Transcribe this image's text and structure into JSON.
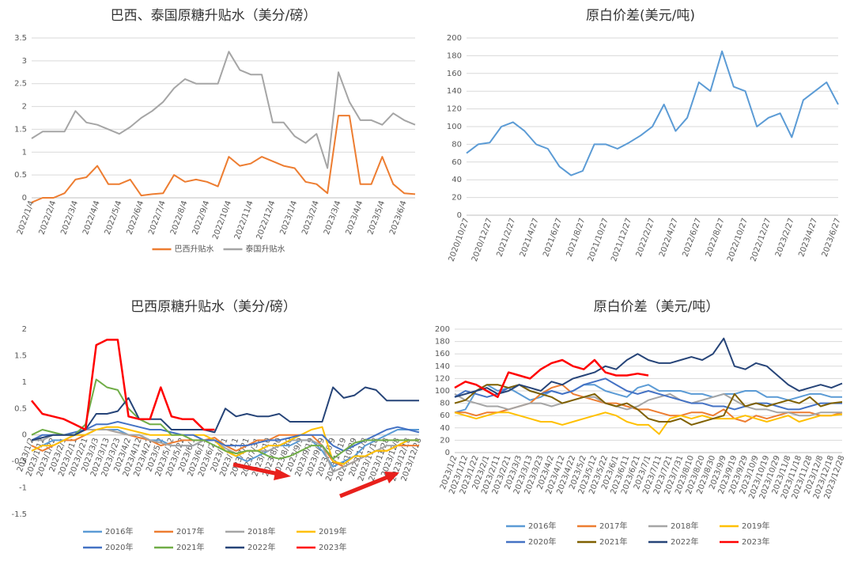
{
  "chart_data": [
    {
      "type": "line",
      "title": "巴西、泰国原糖升贴水（美分/磅）",
      "categories": [
        "2022/1/4",
        null,
        "2022/2/4",
        null,
        "2022/3/4",
        null,
        "2022/4/4",
        null,
        "2022/5/4",
        null,
        "2022/6/4",
        null,
        "2022/7/4",
        null,
        "2022/8/4",
        null,
        "2022/9/4",
        null,
        "2022/10/4",
        null,
        "2022/11/4",
        null,
        "2022/12/4",
        null,
        "2023/1/4",
        null,
        "2023/2/4",
        null,
        "2023/3/4",
        null,
        "2023/4/4",
        null,
        "2023/5/4",
        null,
        "2023/6/4",
        null
      ],
      "series": [
        {
          "name": "巴西升贴水",
          "color": "#ed7d31",
          "values": [
            -0.1,
            0,
            0,
            0.1,
            0.4,
            0.45,
            0.7,
            0.3,
            0.3,
            0.4,
            0.05,
            0.08,
            0.1,
            0.5,
            0.35,
            0.4,
            0.35,
            0.25,
            0.9,
            0.7,
            0.75,
            0.9,
            0.8,
            0.7,
            0.65,
            0.35,
            0.3,
            0.1,
            1.8,
            1.8,
            0.3,
            0.3,
            0.9,
            0.3,
            0.1,
            0.08
          ]
        },
        {
          "name": "泰国升贴水",
          "color": "#a5a5a5",
          "values": [
            1.3,
            1.45,
            1.45,
            1.45,
            1.9,
            1.65,
            1.6,
            1.5,
            1.4,
            1.55,
            1.75,
            1.9,
            2.1,
            2.4,
            2.6,
            2.5,
            2.5,
            2.5,
            3.2,
            2.8,
            2.7,
            2.7,
            1.65,
            1.65,
            1.35,
            1.2,
            1.4,
            0.65,
            2.75,
            2.1,
            1.7,
            1.7,
            1.6,
            1.85,
            1.7,
            1.6
          ]
        }
      ],
      "ylim": [
        0,
        3.5
      ],
      "yticks": [
        0,
        0.5,
        1,
        1.5,
        2,
        2.5,
        3,
        3.5
      ],
      "grid": true,
      "legend": "bottom"
    },
    {
      "type": "line",
      "title": "原白价差(美元/吨)",
      "categories": [
        "2020/10/27",
        null,
        "2020/12/27",
        null,
        "2021/2/27",
        null,
        "2021/4/27",
        null,
        "2021/6/27",
        null,
        "2021/8/27",
        null,
        "2021/10/27",
        null,
        "2021/12/27",
        null,
        "2022/2/27",
        null,
        "2022/4/27",
        null,
        "2022/6/27",
        null,
        "2022/8/27",
        null,
        "2022/10/27",
        null,
        "2022/12/27",
        null,
        "2023/2/27",
        null,
        "2023/4/27",
        null,
        "2023/6/27"
      ],
      "series": [
        {
          "color": "#5b9bd5",
          "values": [
            70,
            80,
            82,
            100,
            105,
            95,
            80,
            75,
            55,
            45,
            50,
            80,
            80,
            75,
            82,
            90,
            100,
            125,
            95,
            110,
            150,
            140,
            185,
            145,
            140,
            100,
            110,
            115,
            88,
            130,
            140,
            150,
            125
          ]
        }
      ],
      "ylim": [
        0,
        200
      ],
      "yticks": [
        0,
        20,
        40,
        60,
        80,
        100,
        120,
        140,
        160,
        180,
        200
      ],
      "grid": true
    },
    {
      "type": "line",
      "title": "巴西原糖升贴水（美分/磅）",
      "categories": [
        "2023/1/2",
        "2023/1/12",
        "2023/1/22",
        "2023/2/1",
        "2023/2/11",
        "2023/2/21",
        "2023/3/3",
        "2023/3/13",
        "2023/3/23",
        "2023/4/2",
        "2023/4/12",
        "2023/4/22",
        "2023/5/2",
        "2023/5/12",
        "2023/5/22",
        "2023/6/1",
        "2023/6/11",
        "2023/6/21",
        "2023/7/1",
        "2023/7/11",
        "2023/7/21",
        "2023/7/31",
        "2023/8/10",
        "2023/8/20",
        "2023/8/30",
        "2023/9/9",
        "2023/9/19",
        "2023/9/29",
        "2023/10/9",
        "2023/10/19",
        "2023/10/29",
        "2023/11/8",
        "2023/11/18",
        "2023/11/28",
        "2023/12/8",
        "2023/12/18",
        "2023/12/28"
      ],
      "series": [
        {
          "name": "2016年",
          "color": "#5b9bd5",
          "values": [
            -0.3,
            -0.2,
            -0.1,
            -0.1,
            0,
            0,
            0.1,
            0.1,
            0.1,
            0,
            0,
            -0.1,
            -0.1,
            -0.2,
            -0.2,
            -0.2,
            -0.1,
            -0.1,
            -0.3,
            -0.4,
            -0.5,
            -0.4,
            -0.3,
            -0.2,
            -0.2,
            -0.1,
            -0.1,
            -0.3,
            -0.6,
            -0.5,
            -0.4,
            -0.2,
            -0.1,
            0,
            0.1,
            0.1,
            0.1
          ]
        },
        {
          "name": "2017年",
          "color": "#ed7d31",
          "values": [
            -0.2,
            -0.3,
            -0.2,
            -0.1,
            -0.1,
            0,
            0.1,
            0.1,
            0.05,
            0,
            -0.05,
            -0.1,
            -0.2,
            -0.15,
            -0.1,
            -0.1,
            -0.1,
            -0.05,
            -0.2,
            -0.3,
            -0.2,
            -0.1,
            -0.1,
            0,
            0,
            0,
            0,
            -0.2,
            -0.5,
            -0.6,
            -0.5,
            -0.4,
            -0.3,
            -0.3,
            -0.2,
            -0.2,
            -0.2
          ]
        },
        {
          "name": "2018年",
          "color": "#a5a5a5",
          "values": [
            -0.1,
            -0.1,
            0,
            0,
            0,
            0.1,
            0.1,
            0.1,
            0.05,
            0,
            0,
            -0.1,
            -0.15,
            -0.2,
            -0.2,
            -0.2,
            -0.1,
            -0.1,
            -0.25,
            -0.35,
            -0.3,
            -0.3,
            -0.3,
            -0.2,
            -0.1,
            -0.1,
            -0.1,
            -0.2,
            -0.7,
            -0.6,
            -0.5,
            -0.4,
            -0.3,
            -0.2,
            -0.2,
            -0.1,
            -0.1
          ]
        },
        {
          "name": "2019年",
          "color": "#ffc000",
          "values": [
            -0.3,
            -0.2,
            -0.2,
            -0.1,
            0,
            0,
            0.1,
            0.15,
            0.15,
            0.1,
            0.05,
            0,
            0,
            0,
            0,
            0,
            0,
            -0.1,
            -0.3,
            -0.4,
            -0.3,
            -0.3,
            -0.2,
            -0.2,
            -0.1,
            0,
            0.1,
            0.15,
            -0.5,
            -0.55,
            -0.4,
            -0.4,
            -0.3,
            -0.3,
            -0.2,
            -0.1,
            -0.1
          ]
        },
        {
          "name": "2020年",
          "color": "#4472c4",
          "values": [
            -0.1,
            0,
            0,
            0,
            0.05,
            0.1,
            0.2,
            0.2,
            0.25,
            0.2,
            0.15,
            0.1,
            0.1,
            0.05,
            0,
            0,
            -0.1,
            -0.1,
            -0.2,
            -0.2,
            -0.2,
            -0.15,
            -0.1,
            -0.1,
            -0.05,
            0,
            0,
            0,
            -0.2,
            -0.3,
            -0.2,
            -0.1,
            0,
            0.1,
            0.15,
            0.1,
            0.05
          ]
        },
        {
          "name": "2021年",
          "color": "#70ad47",
          "values": [
            0,
            0.1,
            0.05,
            0,
            0,
            0.2,
            1.05,
            0.9,
            0.85,
            0.5,
            0.3,
            0.2,
            0.2,
            0,
            0,
            -0.1,
            -0.1,
            -0.2,
            -0.3,
            -0.35,
            -0.3,
            -0.3,
            -0.4,
            -0.45,
            -0.4,
            -0.3,
            -0.2,
            -0.2,
            -0.45,
            -0.3,
            -0.15,
            -0.1,
            -0.1,
            -0.1,
            -0.1,
            -0.1,
            -0.1
          ]
        },
        {
          "name": "2022年",
          "color": "#264478",
          "values": [
            -0.1,
            -0.05,
            0,
            0,
            0,
            0.1,
            0.4,
            0.4,
            0.45,
            0.7,
            0.3,
            0.3,
            0.3,
            0.1,
            0.1,
            0.1,
            0.1,
            0.05,
            0.5,
            0.35,
            0.4,
            0.35,
            0.35,
            0.4,
            0.25,
            0.25,
            0.25,
            0.25,
            0.9,
            0.7,
            0.75,
            0.9,
            0.85,
            0.65,
            0.65,
            0.65,
            0.65
          ]
        },
        {
          "name": "2023年",
          "color": "#ff0000",
          "values": [
            0.65,
            0.4,
            0.35,
            0.3,
            0.2,
            0.1,
            1.7,
            1.8,
            1.8,
            0.35,
            0.3,
            0.3,
            0.9,
            0.35,
            0.3,
            0.3,
            0.1,
            0.1,
            null,
            null,
            null,
            null,
            null,
            null,
            null,
            null,
            null,
            null,
            null,
            null,
            null,
            null,
            null,
            null,
            null,
            null,
            null
          ]
        }
      ],
      "ylim": [
        -1.5,
        2
      ],
      "yticks": [
        -1.5,
        -1,
        -0.5,
        0,
        0.5,
        1,
        1.5,
        2
      ],
      "grid": false,
      "legend": "bottom"
    },
    {
      "type": "line",
      "title": "原白价差（美元/吨）",
      "categories": [
        "2023/1/2",
        "2023/1/12",
        "2023/1/22",
        "2023/2/1",
        "2023/2/11",
        "2023/2/21",
        "2023/3/3",
        "2023/3/13",
        "2023/3/23",
        "2023/4/2",
        "2023/4/12",
        "2023/4/22",
        "2023/5/2",
        "2023/5/12",
        "2023/5/22",
        "2023/6/1",
        "2023/6/11",
        "2023/6/21",
        "2023/7/1",
        "2023/7/11",
        "2023/7/21",
        "2023/7/31",
        "2023/8/10",
        "2023/8/20",
        "2023/8/30",
        "2023/9/9",
        "2023/9/19",
        "2023/9/29",
        "2023/10/9",
        "2023/10/19",
        "2023/10/29",
        "2023/11/8",
        "2023/11/18",
        "2023/11/28",
        "2023/12/8",
        "2023/12/18",
        "2023/12/28"
      ],
      "series": [
        {
          "name": "2016年",
          "color": "#5b9bd5",
          "values": [
            65,
            70,
            100,
            110,
            100,
            105,
            95,
            85,
            90,
            100,
            95,
            100,
            110,
            110,
            100,
            95,
            90,
            105,
            110,
            100,
            100,
            100,
            95,
            95,
            90,
            95,
            95,
            100,
            100,
            90,
            90,
            85,
            90,
            95,
            95,
            90,
            90
          ]
        },
        {
          "name": "2017年",
          "color": "#ed7d31",
          "values": [
            65,
            65,
            60,
            65,
            65,
            70,
            75,
            80,
            95,
            105,
            110,
            95,
            90,
            85,
            80,
            80,
            75,
            70,
            70,
            65,
            60,
            60,
            65,
            65,
            60,
            70,
            55,
            50,
            60,
            55,
            60,
            65,
            65,
            65,
            60,
            60,
            65
          ]
        },
        {
          "name": "2018年",
          "color": "#a5a5a5",
          "values": [
            95,
            85,
            80,
            75,
            75,
            70,
            75,
            80,
            80,
            75,
            80,
            85,
            90,
            90,
            80,
            75,
            70,
            75,
            85,
            90,
            95,
            85,
            80,
            85,
            90,
            95,
            85,
            75,
            70,
            70,
            65,
            65,
            60,
            60,
            65,
            65,
            65
          ]
        },
        {
          "name": "2019年",
          "color": "#ffc000",
          "values": [
            65,
            60,
            55,
            60,
            65,
            65,
            60,
            55,
            50,
            50,
            45,
            50,
            55,
            60,
            65,
            60,
            50,
            45,
            45,
            30,
            55,
            60,
            55,
            60,
            55,
            55,
            55,
            60,
            55,
            50,
            55,
            60,
            50,
            55,
            60,
            60,
            62
          ]
        },
        {
          "name": "2020年",
          "color": "#4472c4",
          "values": [
            90,
            100,
            95,
            90,
            95,
            105,
            110,
            100,
            95,
            100,
            95,
            100,
            110,
            115,
            120,
            110,
            100,
            95,
            100,
            95,
            90,
            85,
            80,
            80,
            75,
            75,
            70,
            75,
            80,
            80,
            75,
            70,
            70,
            75,
            80,
            80,
            80
          ]
        },
        {
          "name": "2021年",
          "color": "#7f6000",
          "values": [
            80,
            85,
            100,
            110,
            110,
            105,
            110,
            100,
            95,
            90,
            80,
            85,
            90,
            95,
            80,
            75,
            80,
            70,
            55,
            50,
            50,
            55,
            45,
            50,
            55,
            60,
            95,
            75,
            80,
            75,
            80,
            85,
            80,
            90,
            75,
            80,
            82
          ]
        },
        {
          "name": "2022年",
          "color": "#264478",
          "values": [
            90,
            95,
            100,
            105,
            95,
            100,
            110,
            105,
            100,
            115,
            110,
            120,
            125,
            130,
            140,
            135,
            150,
            160,
            150,
            145,
            145,
            150,
            155,
            150,
            160,
            185,
            140,
            135,
            145,
            140,
            125,
            110,
            100,
            105,
            110,
            105,
            112
          ]
        },
        {
          "name": "2023年",
          "color": "#ff0000",
          "values": [
            105,
            115,
            110,
            100,
            90,
            130,
            125,
            120,
            135,
            145,
            150,
            140,
            135,
            150,
            130,
            125,
            125,
            128,
            125,
            null,
            null,
            null,
            null,
            null,
            null,
            null,
            null,
            null,
            null,
            null,
            null,
            null,
            null,
            null,
            null,
            null,
            null
          ]
        }
      ],
      "ylim": [
        0,
        200
      ],
      "yticks": [
        0,
        20,
        40,
        60,
        80,
        100,
        120,
        140,
        160,
        180,
        200
      ],
      "grid": true,
      "legend": "bottom"
    }
  ]
}
